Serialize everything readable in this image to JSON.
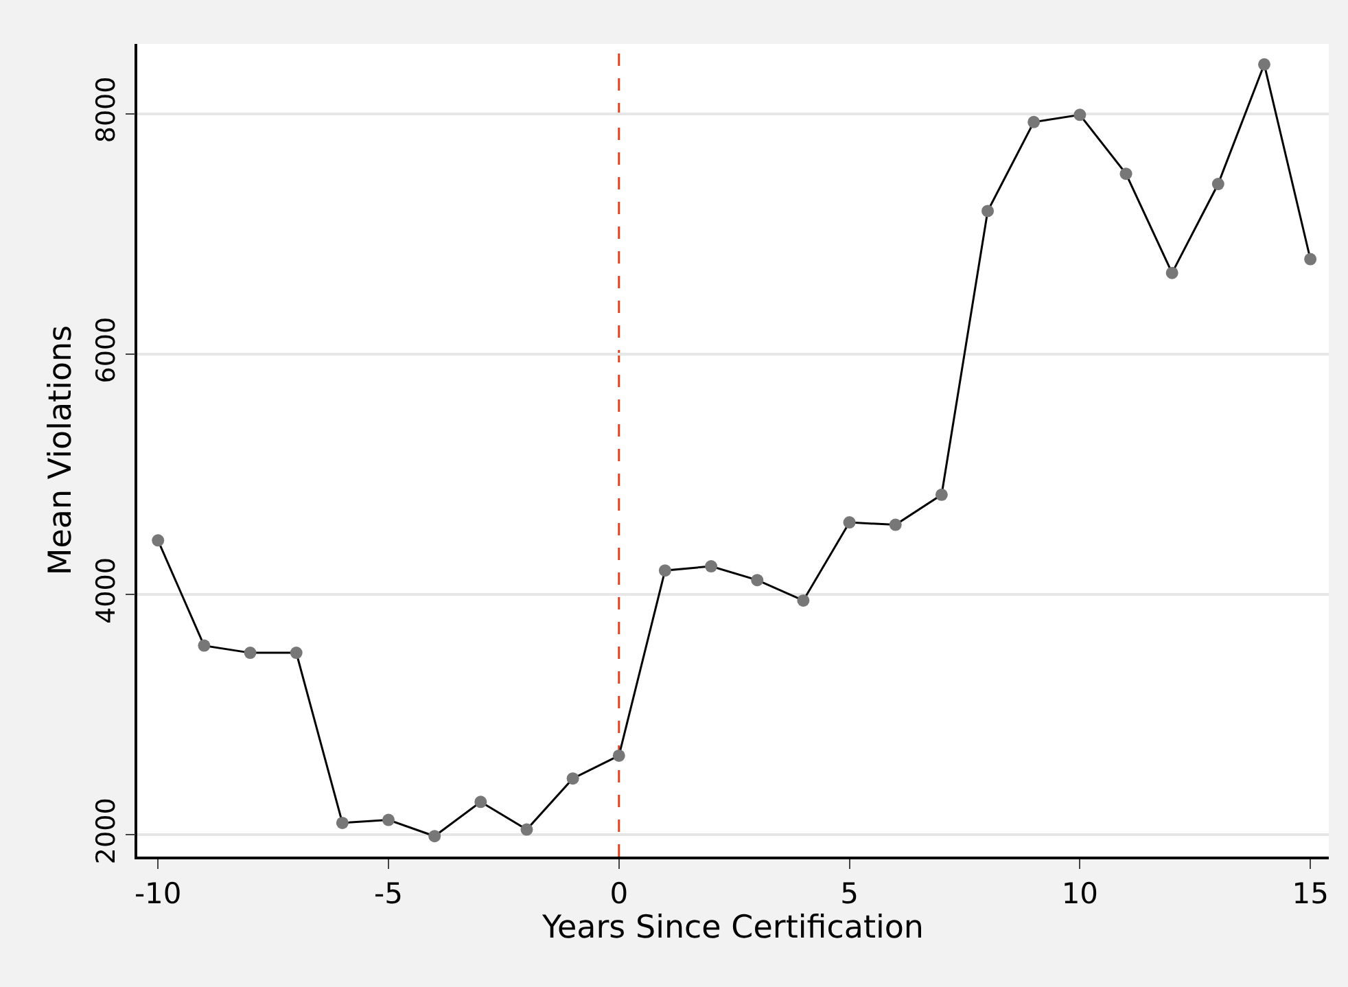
{
  "chart_data": {
    "type": "line",
    "xlabel": "Years Since Certification",
    "ylabel": "Mean Violations",
    "x": [
      -10,
      -9,
      -8,
      -7,
      -6,
      -5,
      -4,
      -3,
      -2,
      -1,
      0,
      1,
      2,
      3,
      4,
      5,
      6,
      7,
      8,
      9,
      10,
      11,
      12,
      13,
      14,
      15
    ],
    "series": [
      {
        "color": "#000000",
        "values": [
          4450,
          3575,
          3515,
          3515,
          2100,
          2125,
          1990,
          2275,
          2045,
          2470,
          2660,
          4200,
          4235,
          4120,
          3950,
          4600,
          4580,
          4830,
          7190,
          7930,
          7990,
          7500,
          6675,
          7415,
          8410,
          6790
        ]
      }
    ],
    "xlim": [
      -10.45,
      15.4
    ],
    "xticks": [
      -10,
      -5,
      0,
      5,
      10,
      15
    ],
    "ylim": [
      1820,
      8580
    ],
    "yticks": [
      2000,
      4000,
      6000,
      8000
    ],
    "ref_lines": [
      {
        "axis": "x",
        "value": 0,
        "color": "#e8401c",
        "line_style": "dashed"
      }
    ],
    "grid": "y",
    "legend": false,
    "marker": "circle",
    "line_style": "solid"
  }
}
